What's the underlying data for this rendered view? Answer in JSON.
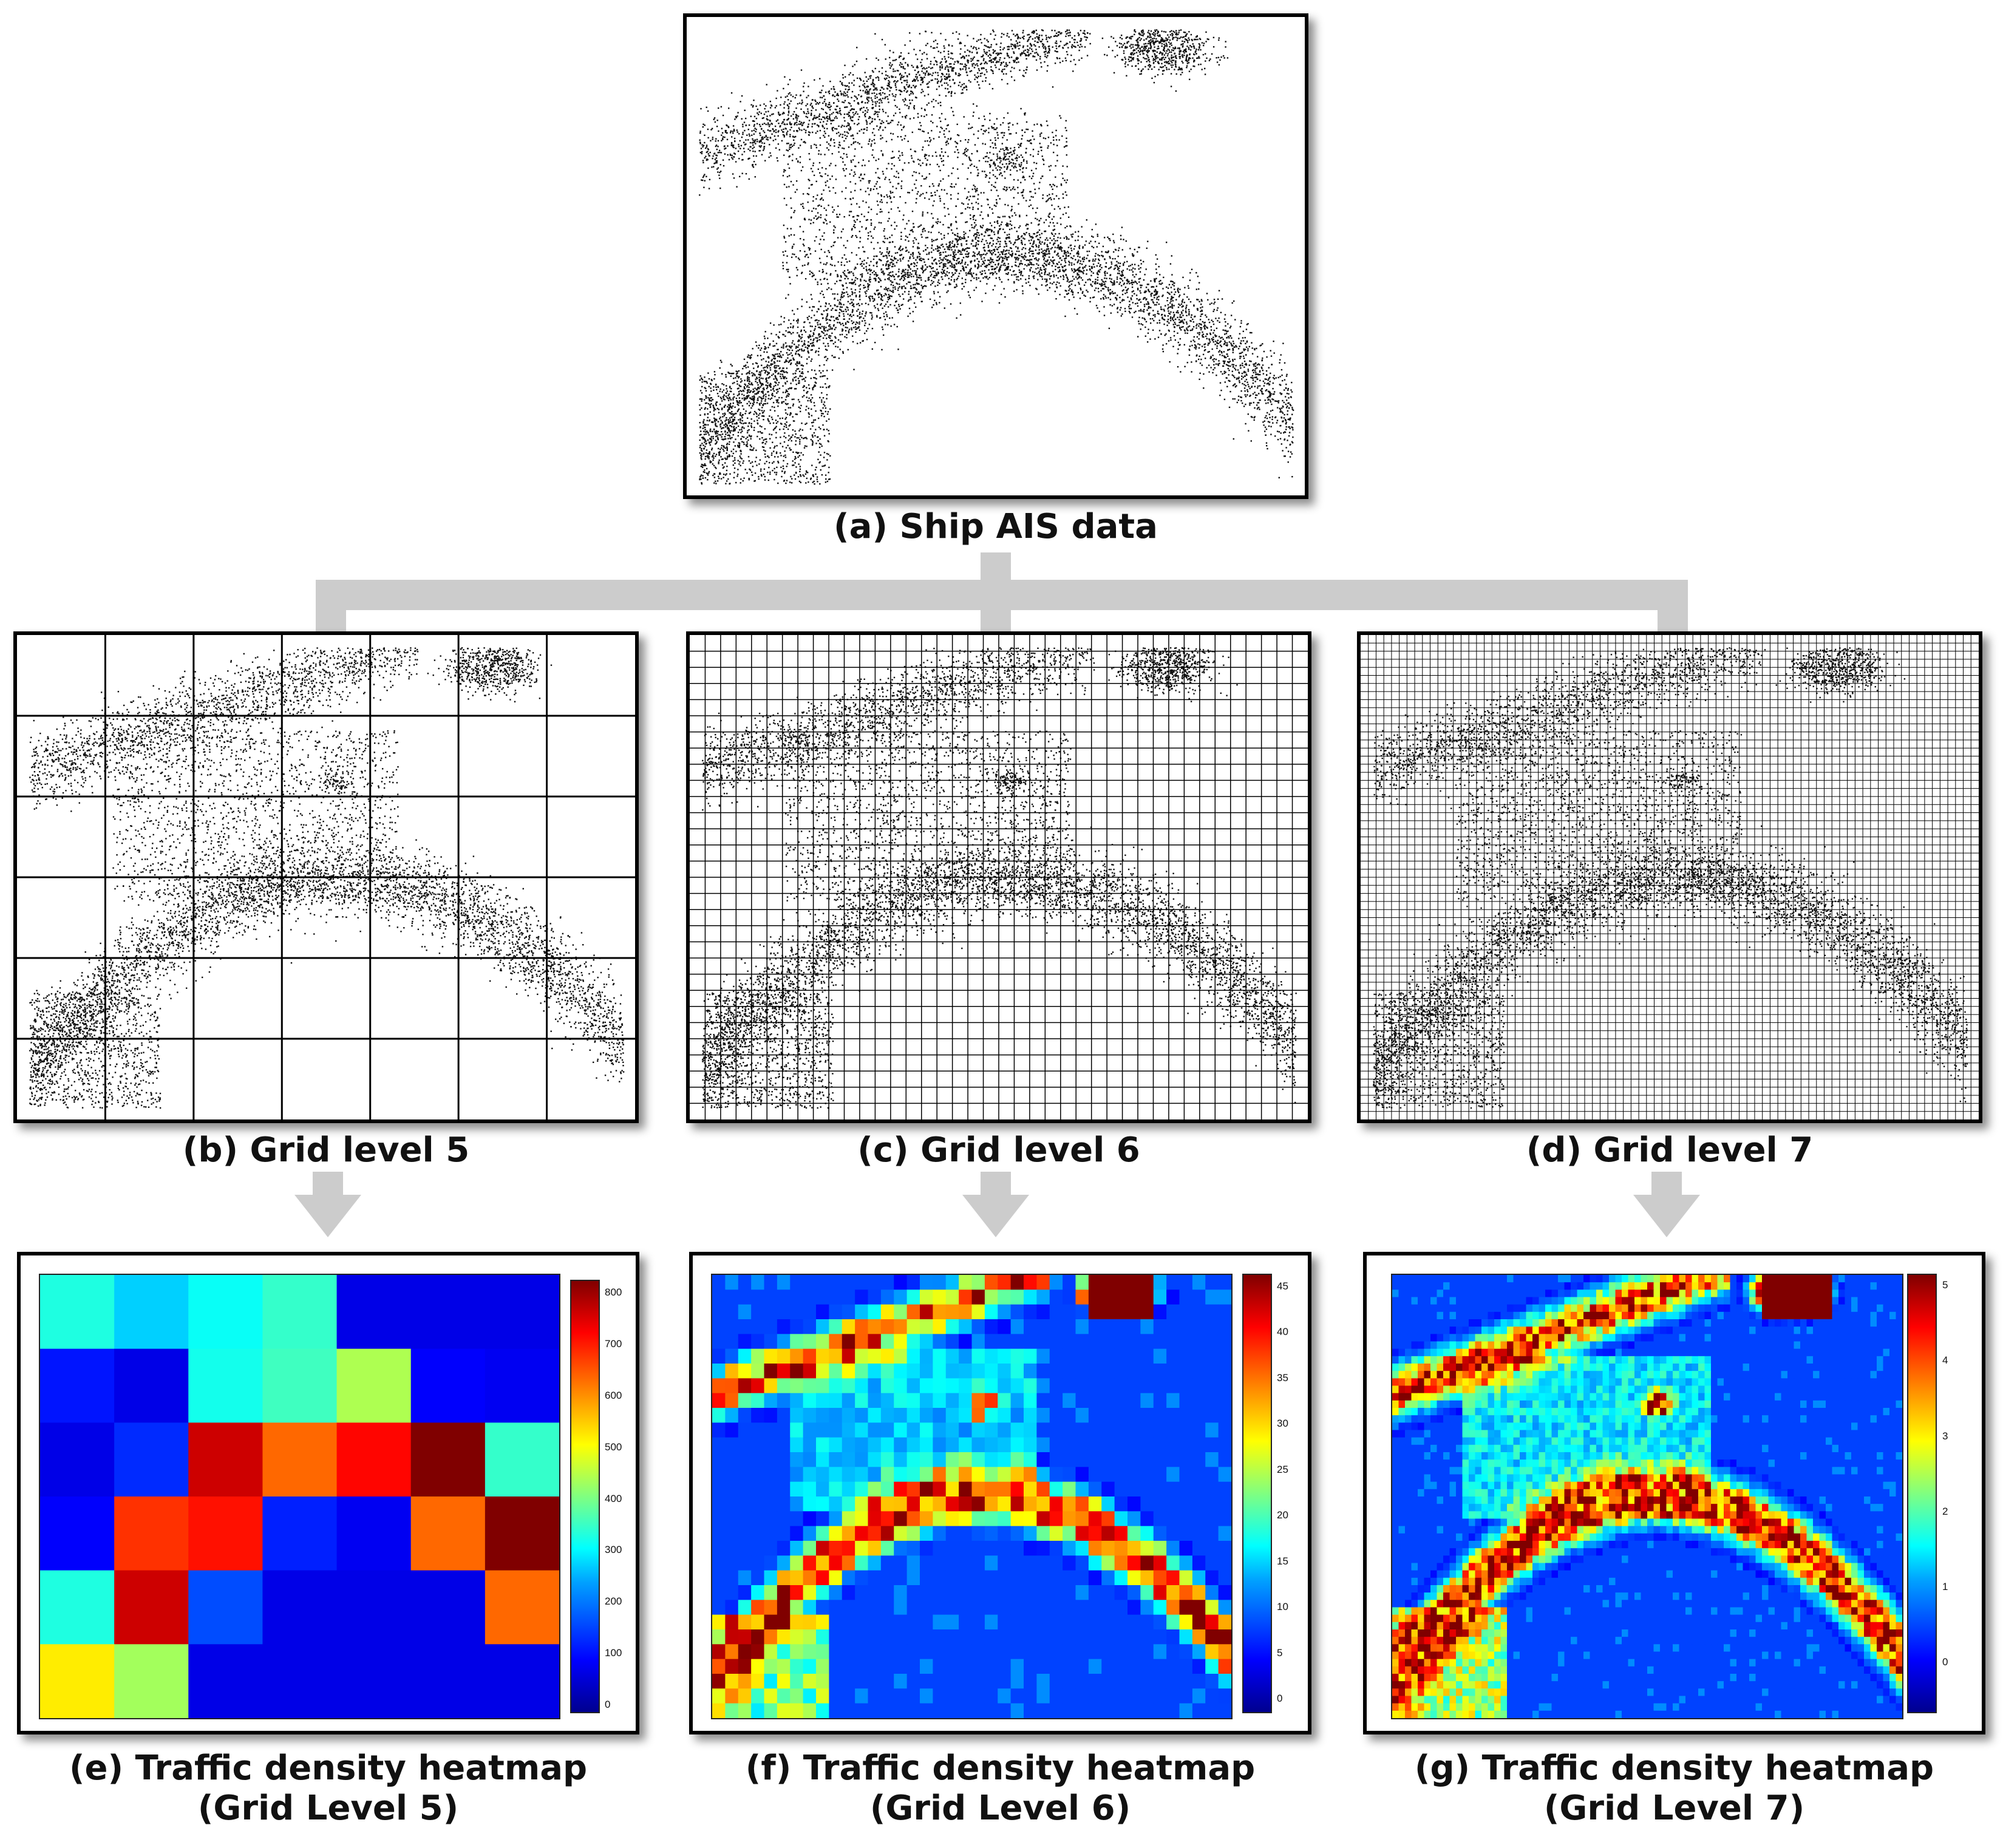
{
  "panels": {
    "a": {
      "caption": "(a) Ship AIS data"
    },
    "b": {
      "caption": "(b) Grid level 5"
    },
    "c": {
      "caption": "(c) Grid level 6"
    },
    "d": {
      "caption": "(d) Grid level 7"
    },
    "e": {
      "caption_line1": "(e) Traffic density heatmap",
      "caption_line2": "(Grid Level 5)",
      "colorbar_ticks": [
        "0",
        "100",
        "200",
        "300",
        "400",
        "500",
        "600",
        "700",
        "800"
      ]
    },
    "f": {
      "caption_line1": "(f) Traffic density heatmap",
      "caption_line2": "(Grid Level 6)",
      "colorbar_ticks": [
        "0",
        "5",
        "10",
        "15",
        "20",
        "25",
        "30",
        "35",
        "40",
        "45"
      ]
    },
    "g": {
      "caption_line1": "(g) Traffic density heatmap",
      "caption_line2": "(Grid Level 7)",
      "colorbar_ticks": [
        "0",
        "1",
        "2",
        "3",
        "4",
        "5"
      ]
    }
  },
  "chart_data": [
    {
      "type": "heatmap",
      "title": "",
      "grid": "7x6",
      "zlim": [
        0,
        850
      ],
      "values": [
        [
          300,
          230,
          280,
          320,
          20,
          20,
          20
        ],
        [
          60,
          20,
          290,
          330,
          430,
          40,
          30
        ],
        [
          20,
          80,
          780,
          640,
          730,
          860,
          320
        ],
        [
          40,
          690,
          720,
          70,
          30,
          640,
          860
        ],
        [
          300,
          780,
          110,
          20,
          20,
          20,
          640
        ],
        [
          520,
          420,
          20,
          20,
          20,
          20,
          20
        ]
      ]
    },
    {
      "type": "heatmap",
      "title": "",
      "grid": "~40x30",
      "zlim": [
        0,
        47
      ]
    },
    {
      "type": "heatmap",
      "title": "",
      "grid": "~80x60",
      "zlim": [
        0,
        6
      ]
    }
  ],
  "colors": {
    "connector": "#cccccc",
    "frame": "#000000"
  }
}
